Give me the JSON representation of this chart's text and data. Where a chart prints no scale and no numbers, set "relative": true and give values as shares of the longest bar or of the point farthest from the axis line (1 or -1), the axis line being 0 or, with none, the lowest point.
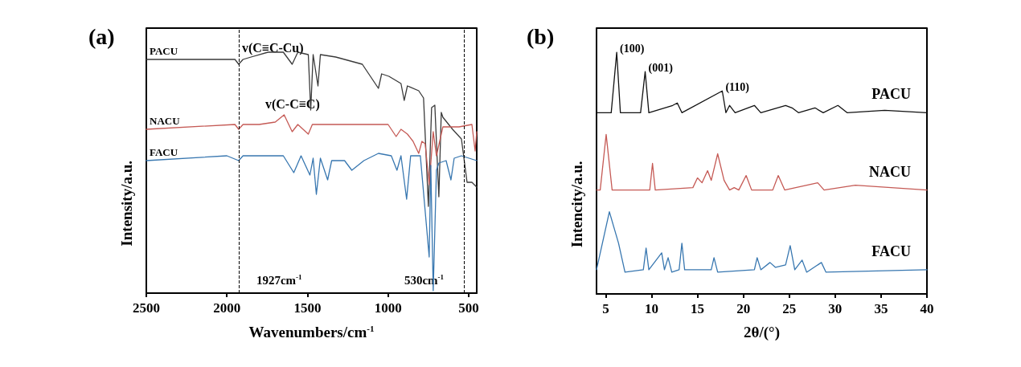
{
  "chart_data": [
    {
      "type": "line",
      "title": "(a)",
      "xlabel": "Wavenumbers/cm$^{-1}$",
      "ylabel": "Intensity/a.u.",
      "relative": true,
      "xlim": [
        2500,
        450
      ],
      "xticks": [
        2500,
        2000,
        1500,
        1000,
        500
      ],
      "legend": false,
      "grid": false,
      "series": [
        {
          "name": "PACU",
          "color": "#3a3a3a",
          "x": [
            2500,
            1950,
            1927,
            1900,
            1850,
            1745,
            1650,
            1595,
            1560,
            1495,
            1480,
            1465,
            1435,
            1420,
            1325,
            1160,
            1060,
            1040,
            995,
            920,
            900,
            880,
            810,
            780,
            750,
            730,
            710,
            685,
            670,
            660,
            600,
            545,
            510,
            480,
            450
          ],
          "values": [
            0.97,
            0.97,
            0.95,
            0.97,
            0.98,
            1.0,
            1.0,
            0.95,
            1.0,
            0.99,
            0.76,
            0.99,
            0.86,
            0.99,
            0.98,
            0.95,
            0.85,
            0.91,
            0.9,
            0.87,
            0.8,
            0.86,
            0.84,
            0.81,
            0.36,
            0.77,
            0.78,
            0.4,
            0.75,
            0.73,
            0.68,
            0.64,
            0.46,
            0.46,
            0.44
          ]
        },
        {
          "name": "NACU",
          "color": "#c55a55",
          "x": [
            2500,
            1950,
            1927,
            1900,
            1800,
            1700,
            1645,
            1595,
            1560,
            1495,
            1470,
            1300,
            1100,
            1000,
            950,
            920,
            880,
            845,
            810,
            790,
            770,
            745,
            720,
            700,
            660,
            560,
            480,
            460,
            450
          ],
          "values": [
            0.68,
            0.7,
            0.68,
            0.7,
            0.7,
            0.71,
            0.74,
            0.67,
            0.7,
            0.66,
            0.7,
            0.7,
            0.7,
            0.7,
            0.65,
            0.68,
            0.66,
            0.63,
            0.58,
            0.63,
            0.62,
            0.45,
            0.67,
            0.57,
            0.69,
            0.69,
            0.7,
            0.59,
            0.67
          ]
        },
        {
          "name": "FACU",
          "color": "#3877b0",
          "x": [
            2500,
            2000,
            1927,
            1900,
            1650,
            1585,
            1540,
            1485,
            1465,
            1445,
            1420,
            1375,
            1350,
            1270,
            1225,
            1150,
            1060,
            980,
            945,
            920,
            885,
            860,
            800,
            745,
            735,
            720,
            700,
            685,
            640,
            610,
            590,
            545,
            450
          ],
          "values": [
            0.55,
            0.57,
            0.55,
            0.57,
            0.57,
            0.5,
            0.57,
            0.49,
            0.56,
            0.41,
            0.56,
            0.47,
            0.55,
            0.55,
            0.51,
            0.55,
            0.58,
            0.57,
            0.51,
            0.57,
            0.39,
            0.57,
            0.57,
            0.15,
            0.53,
            0.01,
            0.51,
            0.54,
            0.55,
            0.47,
            0.56,
            0.57,
            0.55
          ]
        }
      ],
      "ref_lines": [
        {
          "axis": "x",
          "value": 1927,
          "label": "1927cm$^{-1}$",
          "color": "#000000",
          "line_style": "dashed"
        },
        {
          "axis": "x",
          "value": 530,
          "label": "530cm$^{-1}$",
          "color": "#000000",
          "line_style": "dashed"
        }
      ],
      "annotations": [
        {
          "text": "v(C≡C-Cu)",
          "x": 1927,
          "y": 1.0
        },
        "v(C-C≡C)"
      ]
    },
    {
      "type": "line",
      "title": "(b)",
      "xlabel": "2θ/(°)",
      "ylabel": "Intencity/a.u.",
      "relative": true,
      "xlim": [
        4,
        40
      ],
      "xticks": [
        5,
        10,
        15,
        20,
        25,
        30,
        35,
        40
      ],
      "legend": false,
      "grid": false,
      "series": [
        {
          "name": "PACU",
          "color": "#111111",
          "x": [
            4,
            5.6,
            6.2,
            6.6,
            8.8,
            9.3,
            9.7,
            12.3,
            12.8,
            13.3,
            17.7,
            18.1,
            18.5,
            19.1,
            21.2,
            21.9,
            24.6,
            25.3,
            26,
            27.8,
            28.7,
            30.3,
            31.3,
            35.4,
            40
          ],
          "values": [
            0.75,
            0.75,
            1.0,
            0.75,
            0.75,
            0.92,
            0.75,
            0.78,
            0.79,
            0.75,
            0.84,
            0.75,
            0.78,
            0.75,
            0.78,
            0.75,
            0.78,
            0.77,
            0.75,
            0.77,
            0.75,
            0.78,
            0.75,
            0.76,
            0.75
          ]
        },
        {
          "name": "NACU",
          "color": "#c55a55",
          "x": [
            4,
            4.4,
            5.05,
            5.7,
            9.8,
            10.1,
            10.4,
            14.5,
            15,
            15.5,
            16.1,
            16.5,
            17.2,
            17.9,
            18.5,
            19,
            19.5,
            20.3,
            20.9,
            23.2,
            23.8,
            24.5,
            28.1,
            28.8,
            32.2,
            40
          ],
          "values": [
            0.43,
            0.43,
            0.66,
            0.43,
            0.43,
            0.54,
            0.43,
            0.44,
            0.48,
            0.46,
            0.51,
            0.47,
            0.58,
            0.47,
            0.43,
            0.44,
            0.43,
            0.49,
            0.43,
            0.43,
            0.49,
            0.43,
            0.46,
            0.43,
            0.45,
            0.43
          ]
        },
        {
          "name": "FACU",
          "color": "#3877b0",
          "x": [
            4,
            5.4,
            6.4,
            7.1,
            9.1,
            9.4,
            9.7,
            11.1,
            11.4,
            11.8,
            12.2,
            13,
            13.3,
            13.6,
            16.5,
            16.8,
            17.2,
            21.2,
            21.5,
            21.9,
            22.9,
            23.5,
            24.6,
            25.1,
            25.6,
            26.4,
            26.9,
            28.5,
            29,
            40
          ],
          "values": [
            0.1,
            0.34,
            0.21,
            0.09,
            0.1,
            0.19,
            0.1,
            0.17,
            0.1,
            0.15,
            0.09,
            0.1,
            0.21,
            0.1,
            0.1,
            0.15,
            0.09,
            0.1,
            0.15,
            0.1,
            0.13,
            0.11,
            0.12,
            0.2,
            0.1,
            0.14,
            0.09,
            0.13,
            0.09,
            0.1
          ]
        }
      ],
      "annotations": [
        {
          "text": "(100)",
          "x": 6.2,
          "y": 1.0
        },
        {
          "text": "(001)",
          "x": 9.3,
          "y": 0.92
        },
        {
          "text": "(110)",
          "x": 17.7,
          "y": 0.84
        }
      ]
    }
  ]
}
